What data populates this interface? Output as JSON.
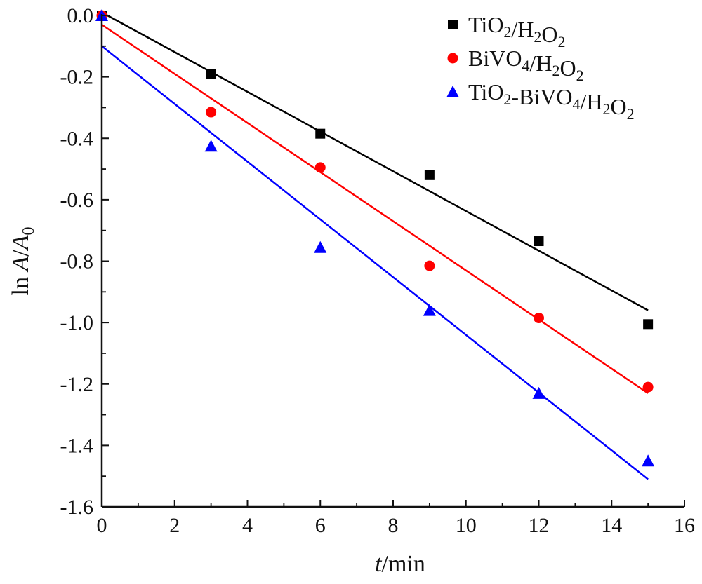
{
  "chart_data": {
    "type": "scatter",
    "xlabel": "t/min",
    "ylabel": "ln A/A0",
    "xlim": [
      0,
      16
    ],
    "ylim": [
      -1.6,
      0.0
    ],
    "x_ticks": [
      0,
      2,
      4,
      6,
      8,
      10,
      12,
      14,
      16
    ],
    "y_ticks": [
      0.0,
      -0.2,
      -0.4,
      -0.6,
      -0.8,
      -1.0,
      -1.2,
      -1.4,
      -1.6
    ],
    "x_tick_labels": [
      "0",
      "2",
      "4",
      "6",
      "8",
      "10",
      "12",
      "14",
      "16"
    ],
    "y_tick_labels": [
      "0.0",
      "-0.2",
      "-0.4",
      "-0.6",
      "-0.8",
      "-1.0",
      "-1.2",
      "-1.4",
      "-1.6"
    ],
    "grid": false,
    "legend_position": "top-right",
    "series": [
      {
        "name": "TiO2/H2O2",
        "color": "#000000",
        "marker": "square",
        "x": [
          0,
          3,
          6,
          9,
          12,
          15
        ],
        "y": [
          0.0,
          -0.19,
          -0.385,
          -0.52,
          -0.735,
          -1.005
        ],
        "fit": {
          "x": [
            0,
            15
          ],
          "y": [
            0.01,
            -0.96
          ]
        }
      },
      {
        "name": "BiVO4/H2O2",
        "color": "#ff0000",
        "marker": "circle",
        "x": [
          0,
          3,
          6,
          9,
          12,
          15
        ],
        "y": [
          0.0,
          -0.315,
          -0.495,
          -0.815,
          -0.985,
          -1.21
        ],
        "fit": {
          "x": [
            0,
            15
          ],
          "y": [
            -0.03,
            -1.23
          ]
        }
      },
      {
        "name": "TiO2-BiVO4/H2O2",
        "color": "#0000ff",
        "marker": "triangle",
        "x": [
          0,
          3,
          6,
          9,
          12,
          15
        ],
        "y": [
          0.0,
          -0.425,
          -0.755,
          -0.96,
          -1.23,
          -1.45
        ],
        "fit": {
          "x": [
            0,
            15
          ],
          "y": [
            -0.1,
            -1.51
          ]
        }
      }
    ]
  }
}
